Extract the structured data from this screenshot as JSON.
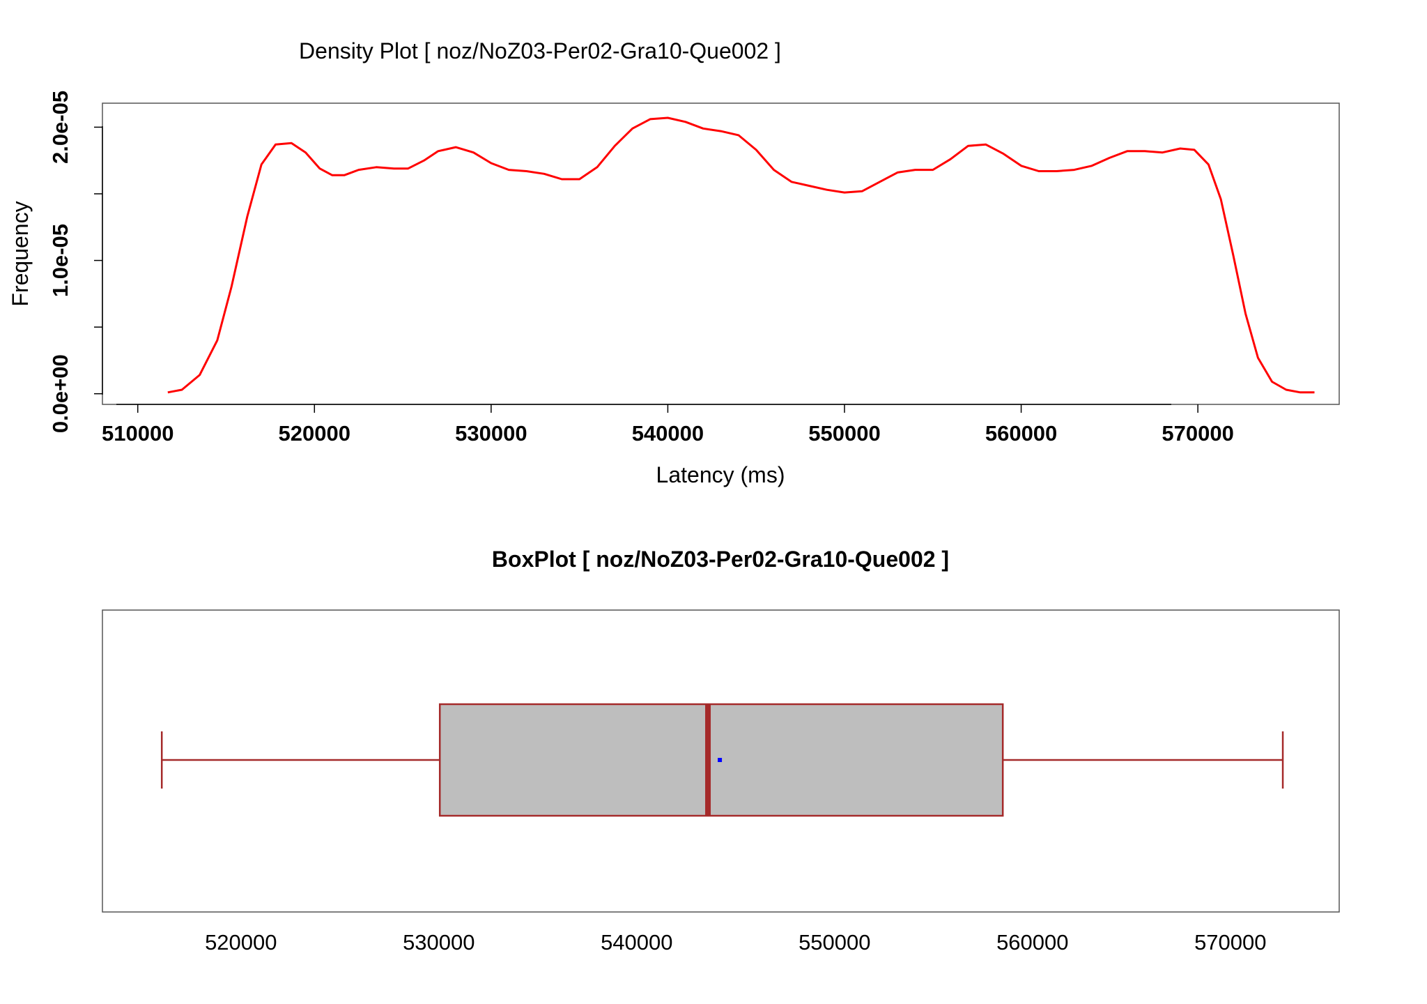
{
  "chart_data": [
    {
      "type": "line",
      "title": "Density Plot [ noz/NoZ03-Per02-Gra10-Que002 ]",
      "xlabel": "Latency (ms)",
      "ylabel": "Frequency",
      "xlim": [
        508000,
        578000
      ],
      "ylim": [
        -8e-07,
        2.18e-05
      ],
      "x_ticks": [
        510000,
        520000,
        530000,
        540000,
        550000,
        560000,
        570000
      ],
      "x_tick_labels": [
        "510000",
        "520000",
        "530000",
        "540000",
        "550000",
        "560000",
        "570000"
      ],
      "y_ticks": [
        0,
        5e-06,
        1e-05,
        1.5e-05,
        2e-05
      ],
      "y_tick_labels": [
        "0.0e+00",
        "",
        "1.0e-05",
        "",
        "2.0e-05"
      ],
      "series": [
        {
          "color": "#ff0000",
          "x": [
            511700,
            512500,
            513500,
            514500,
            515300,
            516200,
            517000,
            517800,
            518700,
            519500,
            520300,
            521000,
            521700,
            522500,
            523500,
            524500,
            525300,
            526200,
            527000,
            528000,
            529000,
            530000,
            531000,
            532000,
            533000,
            534000,
            535000,
            536000,
            537000,
            538000,
            539000,
            540000,
            541000,
            542000,
            543000,
            544000,
            545000,
            546000,
            547000,
            548000,
            549000,
            550000,
            551000,
            552000,
            553000,
            554000,
            555000,
            556000,
            557000,
            558000,
            559000,
            560000,
            561000,
            562000,
            563000,
            564000,
            565000,
            566000,
            567000,
            568000,
            569000,
            569800,
            570600,
            571300,
            572000,
            572700,
            573400,
            574200,
            575000,
            575800,
            576600
          ],
          "y": [
            1e-07,
            3e-07,
            1.4e-06,
            4e-06,
            8e-06,
            1.33e-05,
            1.72e-05,
            1.87e-05,
            1.88e-05,
            1.81e-05,
            1.69e-05,
            1.64e-05,
            1.64e-05,
            1.68e-05,
            1.7e-05,
            1.69e-05,
            1.69e-05,
            1.75e-05,
            1.82e-05,
            1.85e-05,
            1.81e-05,
            1.73e-05,
            1.68e-05,
            1.67e-05,
            1.65e-05,
            1.61e-05,
            1.61e-05,
            1.7e-05,
            1.86e-05,
            1.99e-05,
            2.06e-05,
            2.07e-05,
            2.04e-05,
            1.99e-05,
            1.97e-05,
            1.94e-05,
            1.83e-05,
            1.68e-05,
            1.59e-05,
            1.56e-05,
            1.53e-05,
            1.51e-05,
            1.52e-05,
            1.59e-05,
            1.66e-05,
            1.68e-05,
            1.68e-05,
            1.76e-05,
            1.86e-05,
            1.87e-05,
            1.8e-05,
            1.71e-05,
            1.67e-05,
            1.67e-05,
            1.68e-05,
            1.71e-05,
            1.77e-05,
            1.82e-05,
            1.82e-05,
            1.81e-05,
            1.84e-05,
            1.83e-05,
            1.72e-05,
            1.46e-05,
            1.04e-05,
            6e-06,
            2.7e-06,
            9e-07,
            3e-07,
            1e-07,
            1e-07
          ]
        }
      ]
    },
    {
      "type": "box",
      "title": "BoxPlot [ noz/NoZ03-Per02-Gra10-Que002 ]",
      "xlim": [
        513000,
        575500
      ],
      "x_ticks": [
        520000,
        530000,
        540000,
        550000,
        560000,
        570000
      ],
      "x_tick_labels": [
        "520000",
        "530000",
        "540000",
        "550000",
        "560000",
        "570000"
      ],
      "whisker_low": 516000,
      "q1": 530050,
      "median": 543600,
      "q3": 558500,
      "whisker_high": 572650,
      "mean": 544200,
      "box_fill": "#bebebe",
      "box_stroke": "#a52a2a",
      "mean_color": "#0000ff"
    }
  ]
}
